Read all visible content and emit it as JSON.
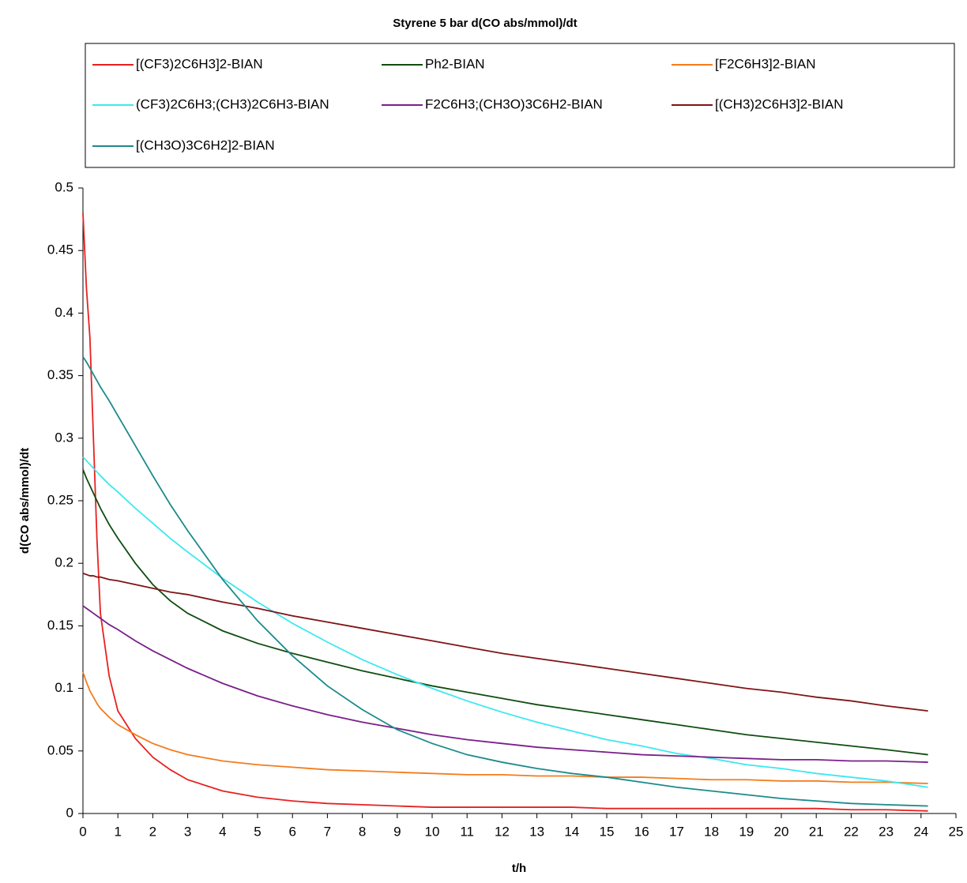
{
  "chart_data": {
    "type": "line",
    "title": "Styrene 5 bar d(CO abs/mmol)/dt",
    "x_label": "t/h",
    "y_label": "d(CO abs/mmol)/dt",
    "xlim": [
      0,
      25
    ],
    "xticks": [
      0,
      1,
      2,
      3,
      4,
      5,
      6,
      7,
      8,
      9,
      10,
      11,
      12,
      13,
      14,
      15,
      16,
      17,
      18,
      19,
      20,
      21,
      22,
      23,
      24,
      25
    ],
    "ylim": [
      0,
      0.5
    ],
    "yticks": [
      0,
      0.05,
      0.1,
      0.15,
      0.2,
      0.25,
      0.3,
      0.35,
      0.4,
      0.45,
      0.5
    ],
    "grid": false,
    "x": [
      0,
      0.1,
      0.2,
      0.3,
      0.4,
      0.5,
      0.75,
      1,
      1.5,
      2,
      2.5,
      3,
      4,
      5,
      6,
      7,
      8,
      9,
      10,
      11,
      12,
      13,
      14,
      15,
      16,
      17,
      18,
      19,
      20,
      21,
      22,
      23,
      24.2
    ],
    "series": [
      {
        "name": "[(CF3)2C6H3]2-BIAN",
        "color": "#e8211f",
        "values": [
          0.48,
          0.42,
          0.38,
          0.3,
          0.22,
          0.16,
          0.11,
          0.082,
          0.06,
          0.045,
          0.035,
          0.027,
          0.018,
          0.013,
          0.01,
          0.008,
          0.007,
          0.006,
          0.005,
          0.005,
          0.005,
          0.005,
          0.005,
          0.004,
          0.004,
          0.004,
          0.004,
          0.004,
          0.004,
          0.004,
          0.003,
          0.003,
          0.002
        ]
      },
      {
        "name": "Ph2-BIAN",
        "color": "#0f4d10",
        "values": [
          0.275,
          0.268,
          0.262,
          0.256,
          0.25,
          0.244,
          0.231,
          0.22,
          0.2,
          0.183,
          0.17,
          0.16,
          0.146,
          0.136,
          0.128,
          0.121,
          0.114,
          0.108,
          0.102,
          0.097,
          0.092,
          0.087,
          0.083,
          0.079,
          0.075,
          0.071,
          0.067,
          0.063,
          0.06,
          0.057,
          0.054,
          0.051,
          0.047
        ]
      },
      {
        "name": "[F2C6H3]2-BIAN",
        "color": "#f47c1c",
        "values": [
          0.113,
          0.105,
          0.098,
          0.093,
          0.088,
          0.084,
          0.077,
          0.071,
          0.063,
          0.056,
          0.051,
          0.047,
          0.042,
          0.039,
          0.037,
          0.035,
          0.034,
          0.033,
          0.032,
          0.031,
          0.031,
          0.03,
          0.03,
          0.029,
          0.029,
          0.028,
          0.027,
          0.027,
          0.026,
          0.026,
          0.025,
          0.025,
          0.024
        ]
      },
      {
        "name": "(CF3)2C6H3;(CH3)2C6H3-BIAN",
        "color": "#3ce8f0",
        "values": [
          0.285,
          0.282,
          0.279,
          0.276,
          0.273,
          0.27,
          0.263,
          0.257,
          0.244,
          0.232,
          0.22,
          0.209,
          0.188,
          0.169,
          0.152,
          0.137,
          0.123,
          0.111,
          0.1,
          0.09,
          0.081,
          0.073,
          0.066,
          0.059,
          0.054,
          0.048,
          0.044,
          0.039,
          0.036,
          0.032,
          0.029,
          0.026,
          0.021
        ]
      },
      {
        "name": "F2C6H3;(CH3O)3C6H2-BIAN",
        "color": "#7a1f8a",
        "values": [
          0.166,
          0.164,
          0.162,
          0.16,
          0.158,
          0.156,
          0.151,
          0.147,
          0.138,
          0.13,
          0.123,
          0.116,
          0.104,
          0.094,
          0.086,
          0.079,
          0.073,
          0.068,
          0.063,
          0.059,
          0.056,
          0.053,
          0.051,
          0.049,
          0.047,
          0.046,
          0.045,
          0.044,
          0.043,
          0.043,
          0.042,
          0.042,
          0.041
        ]
      },
      {
        "name": "[(CH3)2C6H3]2-BIAN",
        "color": "#7f1416",
        "values": [
          0.192,
          0.191,
          0.19,
          0.19,
          0.189,
          0.189,
          0.187,
          0.186,
          0.183,
          0.18,
          0.177,
          0.175,
          0.169,
          0.164,
          0.158,
          0.153,
          0.148,
          0.143,
          0.138,
          0.133,
          0.128,
          0.124,
          0.12,
          0.116,
          0.112,
          0.108,
          0.104,
          0.1,
          0.097,
          0.093,
          0.09,
          0.086,
          0.082
        ]
      },
      {
        "name": "[(CH3O)3C6H2]2-BIAN",
        "color": "#1c8a8c",
        "values": [
          0.365,
          0.361,
          0.356,
          0.351,
          0.346,
          0.341,
          0.33,
          0.318,
          0.294,
          0.27,
          0.247,
          0.226,
          0.187,
          0.154,
          0.126,
          0.102,
          0.083,
          0.067,
          0.056,
          0.047,
          0.041,
          0.036,
          0.032,
          0.029,
          0.025,
          0.021,
          0.018,
          0.015,
          0.012,
          0.01,
          0.008,
          0.007,
          0.006
        ]
      }
    ]
  }
}
